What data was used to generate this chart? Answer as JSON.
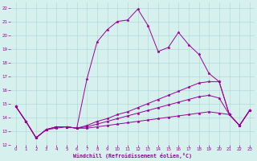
{
  "xlabel": "Windchill (Refroidissement éolien,°C)",
  "xlim": [
    -0.5,
    23.5
  ],
  "ylim": [
    12,
    22.4
  ],
  "xticks": [
    0,
    1,
    2,
    3,
    4,
    5,
    6,
    7,
    8,
    9,
    10,
    11,
    12,
    13,
    14,
    15,
    16,
    17,
    18,
    19,
    20,
    21,
    22,
    23
  ],
  "yticks": [
    12,
    13,
    14,
    15,
    16,
    17,
    18,
    19,
    20,
    21,
    22
  ],
  "bg_color": "#d6f0ee",
  "line_color": "#990099",
  "line1_y": [
    14.8,
    13.7,
    12.5,
    13.1,
    13.2,
    13.3,
    13.2,
    16.8,
    19.5,
    20.4,
    21.0,
    21.1,
    21.9,
    20.7,
    18.8,
    19.1,
    20.2,
    19.3,
    18.6,
    17.2,
    16.6,
    14.2,
    13.4,
    14.5
  ],
  "line2_y": [
    14.8,
    13.7,
    12.5,
    13.1,
    13.3,
    13.3,
    13.2,
    13.4,
    13.7,
    13.9,
    14.2,
    14.4,
    14.7,
    15.0,
    15.3,
    15.6,
    15.9,
    16.2,
    16.5,
    16.6,
    16.6,
    14.2,
    13.4,
    14.5
  ],
  "line3_y": [
    14.8,
    13.7,
    12.5,
    13.1,
    13.3,
    13.3,
    13.2,
    13.3,
    13.5,
    13.7,
    13.9,
    14.1,
    14.3,
    14.5,
    14.7,
    14.9,
    15.1,
    15.3,
    15.5,
    15.6,
    15.4,
    14.2,
    13.4,
    14.5
  ],
  "line4_y": [
    14.8,
    13.7,
    12.5,
    13.1,
    13.3,
    13.3,
    13.2,
    13.2,
    13.3,
    13.4,
    13.5,
    13.6,
    13.7,
    13.8,
    13.9,
    14.0,
    14.1,
    14.2,
    14.3,
    14.4,
    14.3,
    14.2,
    13.4,
    14.5
  ]
}
